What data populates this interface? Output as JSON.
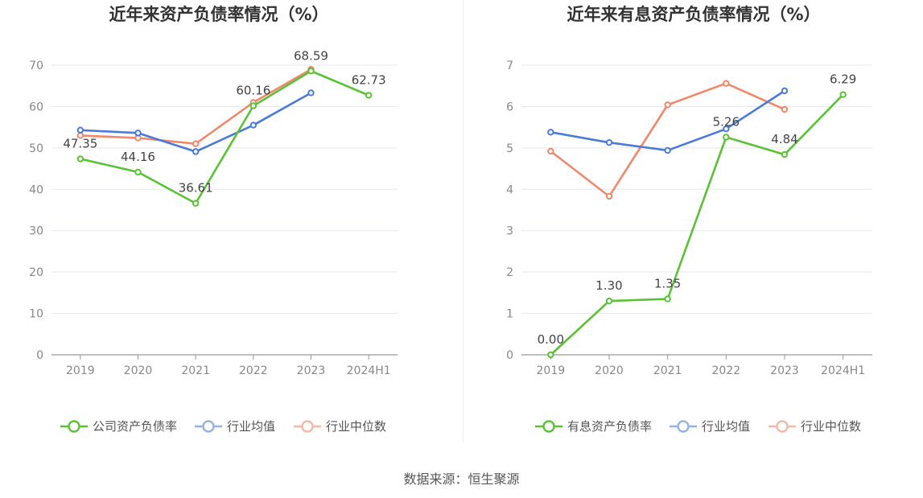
{
  "source": "数据来源：恒生聚源",
  "chart_data": [
    {
      "type": "line",
      "title": "近年来资产负债率情况（%）",
      "categories": [
        "2019",
        "2020",
        "2021",
        "2022",
        "2023",
        "2024H1"
      ],
      "ylim": [
        0,
        70
      ],
      "yticks": [
        0,
        10,
        20,
        30,
        40,
        50,
        60,
        70
      ],
      "grid": true,
      "legend_position": "bottom",
      "series": [
        {
          "name": "公司资产负债率",
          "color": "#5ac235",
          "values": [
            47.35,
            44.16,
            36.61,
            60.16,
            68.59,
            62.73
          ],
          "labels": [
            "47.35",
            "44.16",
            "36.61",
            "60.16",
            "68.59",
            "62.73"
          ]
        },
        {
          "name": "行业均值",
          "color": "#4a7bd9",
          "values": [
            54.3,
            53.6,
            49.1,
            55.5,
            63.3,
            null
          ]
        },
        {
          "name": "行业中位数",
          "color": "#f0896a",
          "values": [
            53.0,
            52.4,
            51.0,
            61.0,
            69.0,
            null
          ]
        }
      ]
    },
    {
      "type": "line",
      "title": "近年来有息资产负债率情况（%）",
      "categories": [
        "2019",
        "2020",
        "2021",
        "2022",
        "2023",
        "2024H1"
      ],
      "ylim": [
        0,
        7
      ],
      "yticks": [
        0,
        1,
        2,
        3,
        4,
        5,
        6,
        7
      ],
      "grid": true,
      "legend_position": "bottom",
      "series": [
        {
          "name": "有息资产负债率",
          "color": "#5ac235",
          "values": [
            0.0,
            1.3,
            1.35,
            5.26,
            4.84,
            6.29
          ],
          "labels": [
            "0.00",
            "1.30",
            "1.35",
            "5.26",
            "4.84",
            "6.29"
          ]
        },
        {
          "name": "行业均值",
          "color": "#4a7bd9",
          "values": [
            5.38,
            5.13,
            4.94,
            5.46,
            6.38,
            null
          ]
        },
        {
          "name": "行业中位数",
          "color": "#f0896a",
          "values": [
            4.92,
            3.83,
            6.04,
            6.56,
            5.93,
            null
          ]
        }
      ]
    }
  ]
}
